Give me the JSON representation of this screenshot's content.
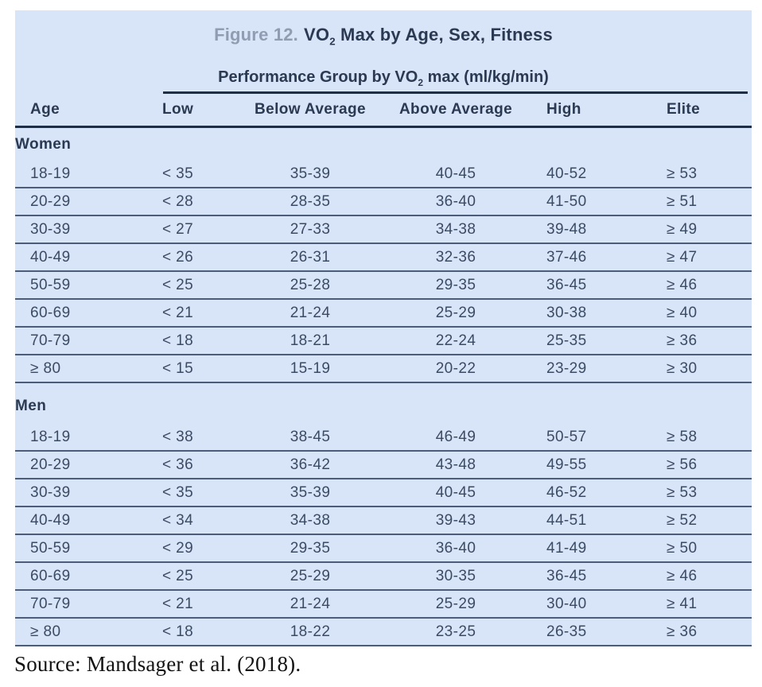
{
  "header": {
    "figure_label": "Figure 12.",
    "title_pre": "VO",
    "title_sub": "2",
    "title_post": " Max by Age, Sex, Fitness",
    "subheader_pre": "Performance Group by VO",
    "subheader_sub": "2",
    "subheader_post": " max (ml/kg/min)"
  },
  "source": "Source: Mandsager et al. (2018).",
  "colors": {
    "card_background": "#d8e4f7",
    "heading_navy": "#2b3a52",
    "figure_label_gray": "#8f9cb1",
    "body_text": "#3c4b64",
    "thick_rule": "#1f2e47",
    "thin_rule": "#4d5d79",
    "source_text": "#131313"
  },
  "chart_data": {
    "type": "table",
    "title": "Figure 12. VO2 Max by Age, Sex, Fitness",
    "subtitle": "Performance Group by VO2 max (ml/kg/min)",
    "columns": [
      "Age",
      "Low",
      "Below Average",
      "Above Average",
      "High",
      "Elite"
    ],
    "sections": [
      {
        "label": "Women",
        "rows": [
          [
            "18-19",
            "< 35",
            "35-39",
            "40-45",
            "40-52",
            "≥ 53"
          ],
          [
            "20-29",
            "< 28",
            "28-35",
            "36-40",
            "41-50",
            "≥ 51"
          ],
          [
            "30-39",
            "< 27",
            "27-33",
            "34-38",
            "39-48",
            "≥ 49"
          ],
          [
            "40-49",
            "< 26",
            "26-31",
            "32-36",
            "37-46",
            "≥ 47"
          ],
          [
            "50-59",
            "< 25",
            "25-28",
            "29-35",
            "36-45",
            "≥ 46"
          ],
          [
            "60-69",
            "< 21",
            "21-24",
            "25-29",
            "30-38",
            "≥ 40"
          ],
          [
            "70-79",
            "< 18",
            "18-21",
            "22-24",
            "25-35",
            "≥ 36"
          ],
          [
            "≥ 80",
            "< 15",
            "15-19",
            "20-22",
            "23-29",
            "≥ 30"
          ]
        ]
      },
      {
        "label": "Men",
        "rows": [
          [
            "18-19",
            "< 38",
            "38-45",
            "46-49",
            "50-57",
            "≥ 58"
          ],
          [
            "20-29",
            "< 36",
            "36-42",
            "43-48",
            "49-55",
            "≥ 56"
          ],
          [
            "30-39",
            "< 35",
            "35-39",
            "40-45",
            "46-52",
            "≥ 53"
          ],
          [
            "40-49",
            "< 34",
            "34-38",
            "39-43",
            "44-51",
            "≥ 52"
          ],
          [
            "50-59",
            "< 29",
            "29-35",
            "36-40",
            "41-49",
            "≥ 50"
          ],
          [
            "60-69",
            "< 25",
            "25-29",
            "30-35",
            "36-45",
            "≥ 46"
          ],
          [
            "70-79",
            "< 21",
            "21-24",
            "25-29",
            "30-40",
            "≥ 41"
          ],
          [
            "≥ 80",
            "< 18",
            "18-22",
            "23-25",
            "26-35",
            "≥ 36"
          ]
        ]
      }
    ],
    "source": "Source: Mandsager et al. (2018)."
  }
}
